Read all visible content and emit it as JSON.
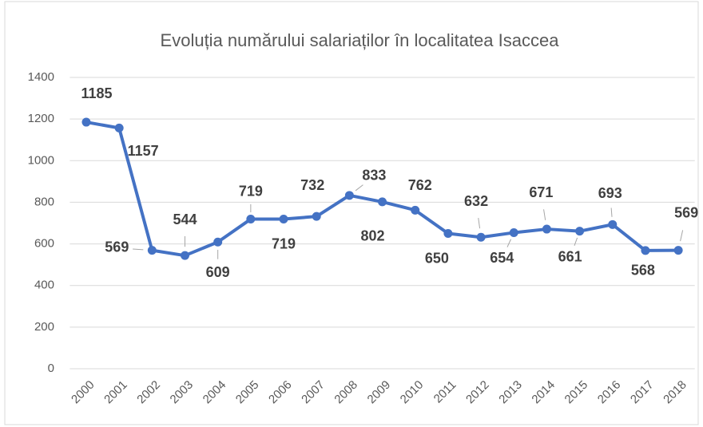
{
  "chart_data": {
    "type": "line",
    "title": "Evoluția numărului salariaților în localitatea Isaccea",
    "categories": [
      "2000",
      "2001",
      "2002",
      "2003",
      "2004",
      "2005",
      "2006",
      "2007",
      "2008",
      "2009",
      "2010",
      "2011",
      "2012",
      "2013",
      "2014",
      "2015",
      "2016",
      "2017",
      "2018"
    ],
    "values": [
      1185,
      1157,
      569,
      544,
      609,
      719,
      719,
      732,
      833,
      802,
      762,
      650,
      632,
      654,
      671,
      661,
      693,
      568,
      569
    ],
    "color": "#4472c4",
    "ylim": [
      0,
      1400
    ],
    "yticks": [
      0,
      200,
      400,
      600,
      800,
      1000,
      1200,
      1400
    ],
    "grid": true
  }
}
